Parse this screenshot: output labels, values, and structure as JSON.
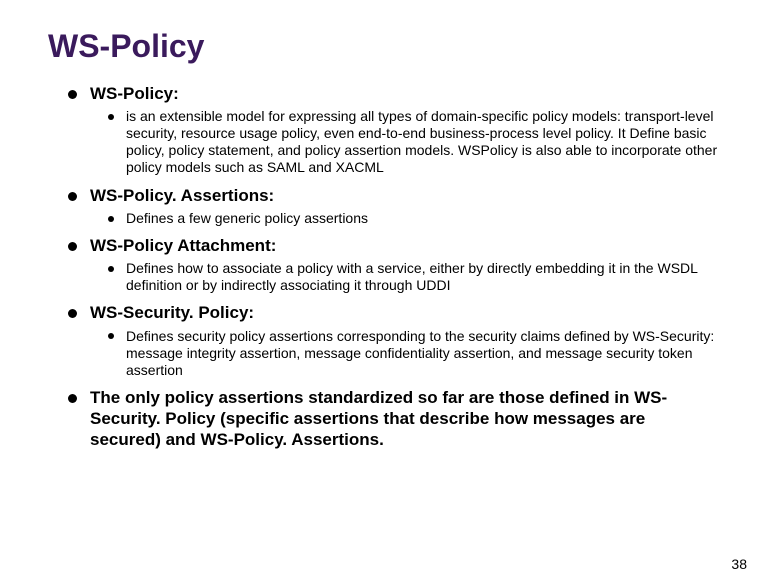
{
  "slide": {
    "title": "WS-Policy",
    "title_color": "#3a1a5c",
    "title_fontsize": 32,
    "background_color": "#ffffff",
    "bullet_color": "#000000",
    "body_fontsize_level1": 17,
    "body_fontsize_level2": 14,
    "page_number": "38",
    "items": [
      {
        "label": "WS-Policy:",
        "children": [
          "is an extensible model for expressing all types of domain-specific policy models: transport-level security, resource usage policy, even end-to-end business-process level policy. It  Define basic policy, policy statement, and policy assertion models.  WSPolicy is also able to incorporate other policy models such as SAML and XACML"
        ]
      },
      {
        "label": "WS-Policy. Assertions:",
        "children": [
          "Defines a few generic policy assertions"
        ]
      },
      {
        "label": "WS-Policy Attachment:",
        "children": [
          "Defines how to associate a policy with a service, either by directly embedding it in the WSDL definition or by indirectly associating it through UDDI"
        ]
      },
      {
        "label": "WS-Security. Policy:",
        "children": [
          "Defines security policy assertions corresponding to the security claims defined by WS-Security: message integrity assertion, message confidentiality assertion, and message security token assertion"
        ]
      },
      {
        "label": "The only policy assertions standardized so far are those defined in WS-Security. Policy (specific assertions that describe how messages are secured) and WS-Policy. Assertions.",
        "children": []
      }
    ]
  }
}
